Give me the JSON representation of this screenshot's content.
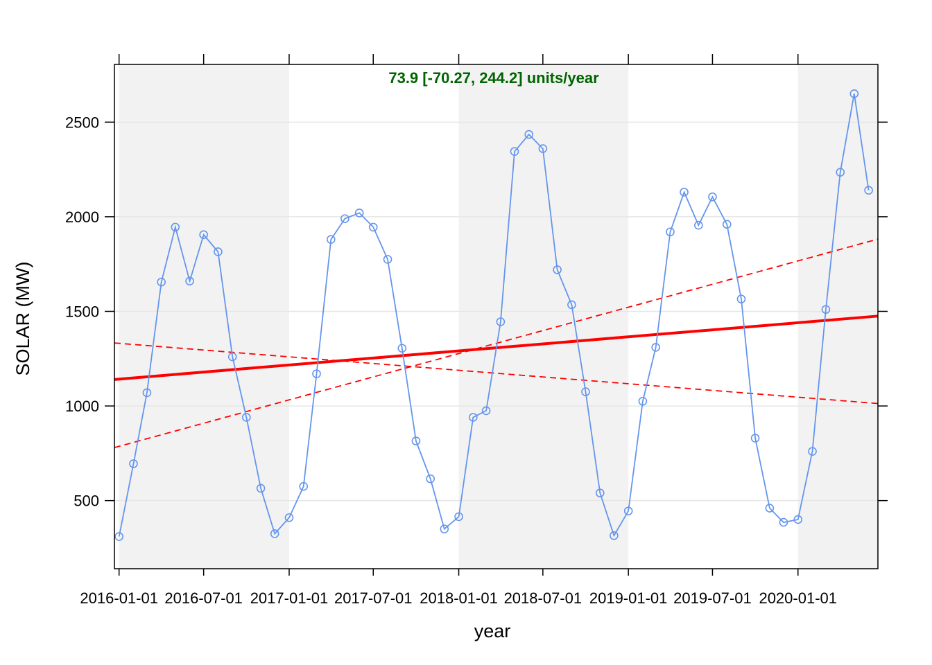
{
  "chart_data": {
    "type": "line",
    "title": "",
    "xlabel": "year",
    "ylabel": "SOLAR (MW)",
    "annotation": "73.9 [-70.27, 244.2] units/year",
    "colors": {
      "series": "#6495ED",
      "trend": "#FF0000",
      "annotation": "#006400",
      "band": "#F2F2F2",
      "grid": "#E6E6E6"
    },
    "x_ticks": [
      "2016-01-01",
      "2016-07-01",
      "2017-01-01",
      "2017-07-01",
      "2018-01-01",
      "2018-07-01",
      "2019-01-01",
      "2019-07-01",
      "2020-01-01"
    ],
    "y_ticks": [
      500,
      1000,
      1500,
      2000,
      2500
    ],
    "xlim": [
      "2015-12-22",
      "2020-06-21"
    ],
    "ylim": [
      140,
      2805
    ],
    "grid": true,
    "shaded_years": [
      2016,
      2018,
      2020
    ],
    "series": [
      {
        "x": [
          "2016-01-01",
          "2016-02-01",
          "2016-03-01",
          "2016-04-01",
          "2016-05-01",
          "2016-06-01",
          "2016-07-01",
          "2016-08-01",
          "2016-09-01",
          "2016-10-01",
          "2016-11-01",
          "2016-12-01",
          "2017-01-01",
          "2017-02-01",
          "2017-03-01",
          "2017-04-01",
          "2017-05-01",
          "2017-06-01",
          "2017-07-01",
          "2017-08-01",
          "2017-09-01",
          "2017-10-01",
          "2017-11-01",
          "2017-12-01",
          "2018-01-01",
          "2018-02-01",
          "2018-03-01",
          "2018-04-01",
          "2018-05-01",
          "2018-06-01",
          "2018-07-01",
          "2018-08-01",
          "2018-09-01",
          "2018-10-01",
          "2018-11-01",
          "2018-12-01",
          "2019-01-01",
          "2019-02-01",
          "2019-03-01",
          "2019-04-01",
          "2019-05-01",
          "2019-06-01",
          "2019-07-01",
          "2019-08-01",
          "2019-09-01",
          "2019-10-01",
          "2019-11-01",
          "2019-12-01",
          "2020-01-01",
          "2020-02-01",
          "2020-03-01",
          "2020-04-01",
          "2020-05-01",
          "2020-06-01"
        ],
        "values": [
          310,
          695,
          1070,
          1655,
          1945,
          1660,
          1905,
          1815,
          1260,
          940,
          565,
          325,
          410,
          575,
          1170,
          1880,
          1990,
          2020,
          1945,
          1775,
          1305,
          815,
          615,
          350,
          415,
          940,
          975,
          1445,
          2345,
          2435,
          2360,
          1720,
          1535,
          1075,
          540,
          315,
          445,
          1025,
          1310,
          1920,
          2130,
          1955,
          2105,
          1960,
          1565,
          830,
          460,
          385,
          400,
          760,
          1510,
          2235,
          2650,
          2140
        ]
      }
    ],
    "trend_lines": [
      {
        "style": "solid",
        "x": [
          "2015-12-22",
          "2020-06-21"
        ],
        "values": [
          1140,
          1475
        ]
      },
      {
        "style": "dashed",
        "x": [
          "2015-12-22",
          "2020-06-21"
        ],
        "values": [
          780,
          1882
        ]
      },
      {
        "style": "dashed",
        "x": [
          "2015-12-22",
          "2020-06-21"
        ],
        "values": [
          1333,
          1013
        ]
      }
    ]
  }
}
